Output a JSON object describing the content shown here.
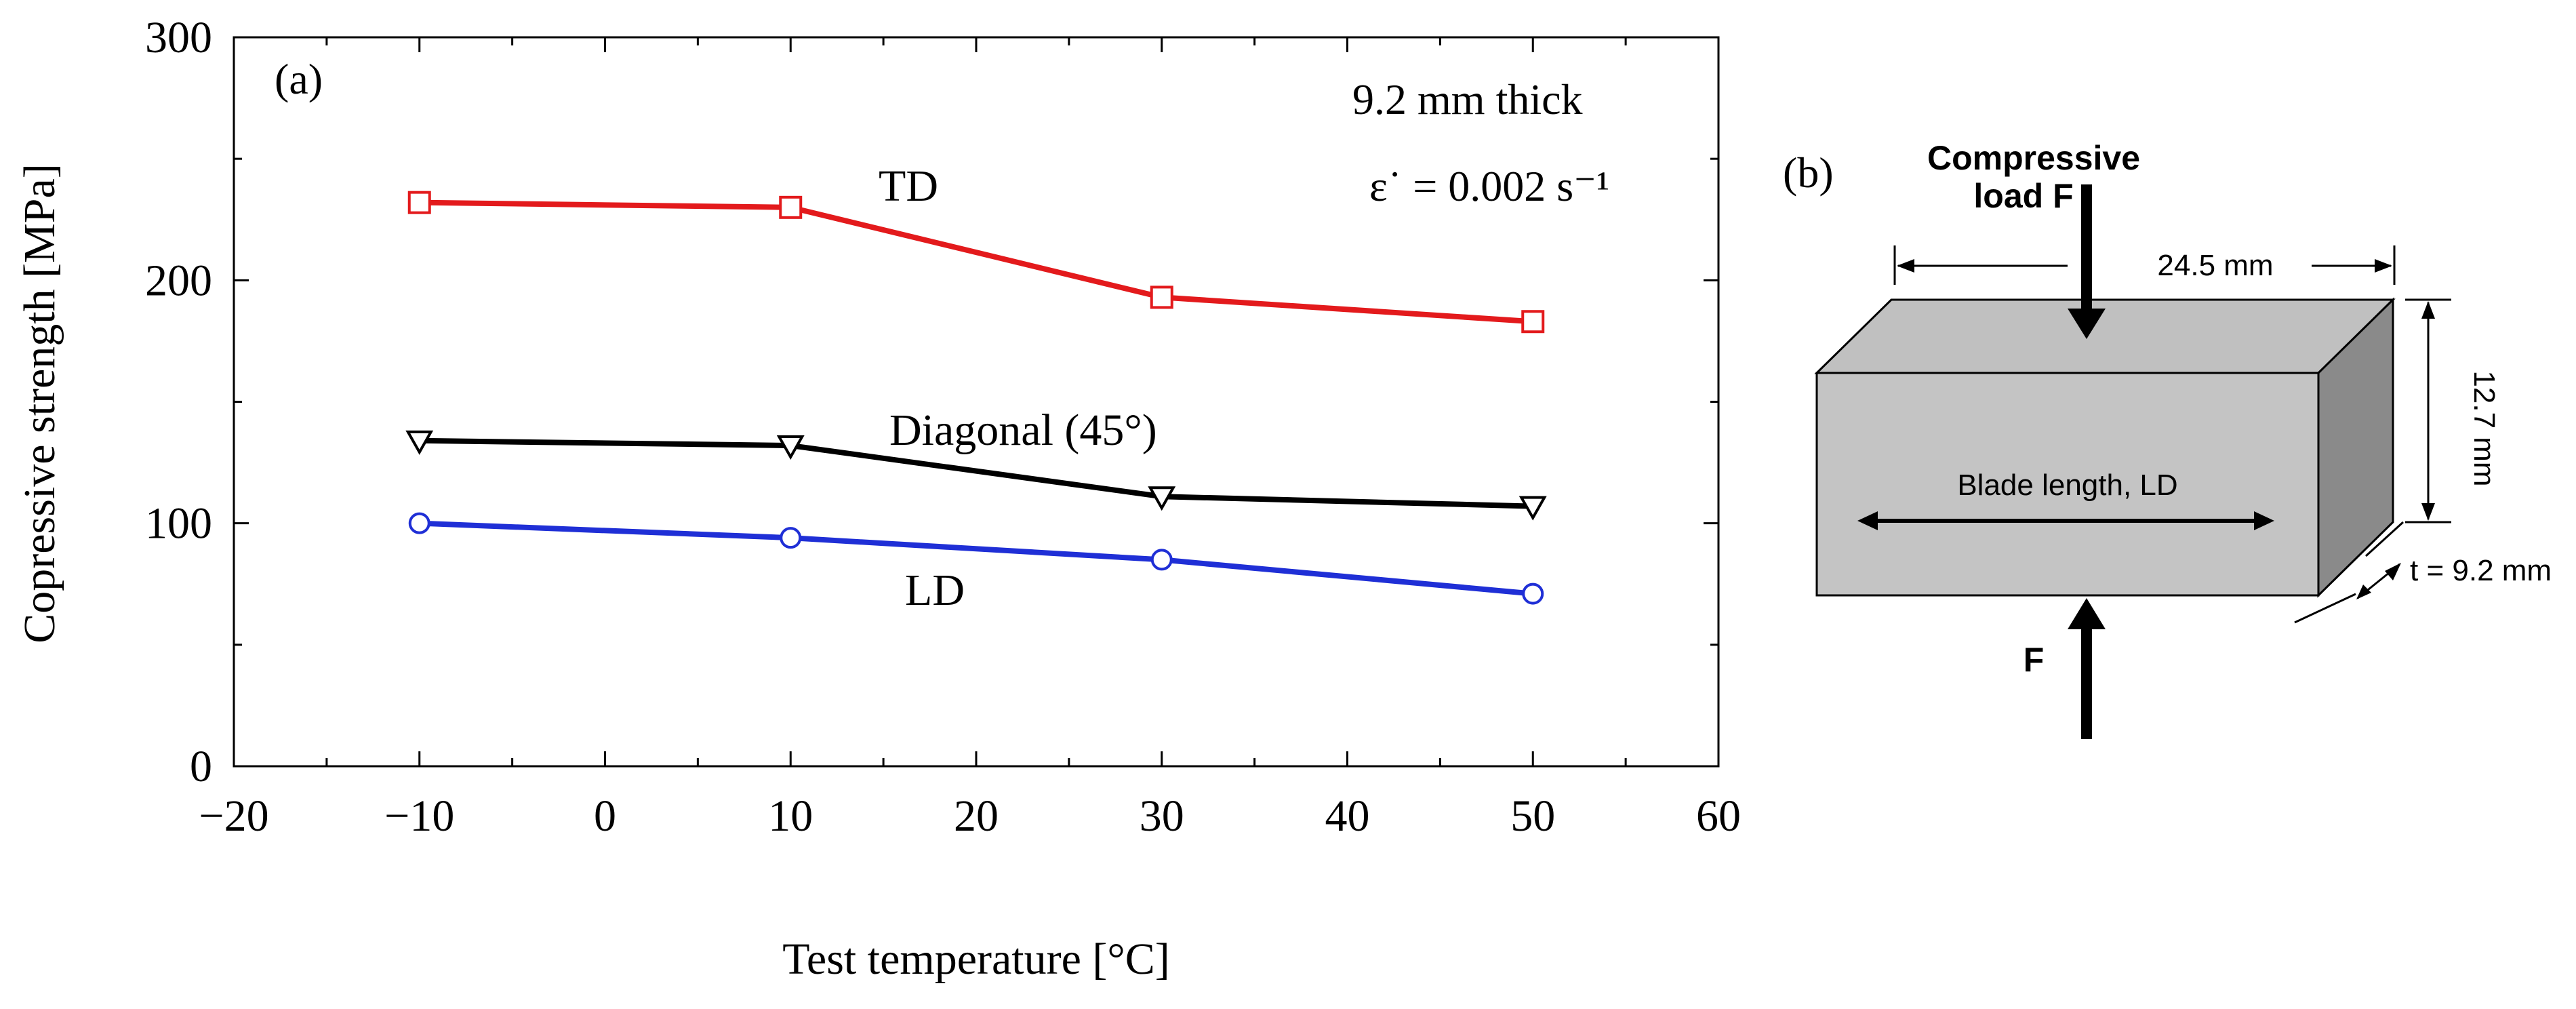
{
  "chart_data": {
    "type": "line",
    "panel_label": "(a)",
    "x": [
      -10,
      10,
      30,
      50
    ],
    "xlim": [
      -20,
      60
    ],
    "ylim": [
      0,
      300
    ],
    "xticks": [
      "−20",
      "−10",
      "0",
      "10",
      "20",
      "30",
      "40",
      "50",
      "60"
    ],
    "xtick_values": [
      -20,
      -10,
      0,
      10,
      20,
      30,
      40,
      50,
      60
    ],
    "yticks": [
      "0",
      "100",
      "200",
      "300"
    ],
    "ytick_values": [
      0,
      100,
      200,
      300
    ],
    "xlabel": "Test temperature [°C]",
    "ylabel": "Copressive strength [MPa]",
    "annotation_thickness": "9.2 mm thick",
    "annotation_rate": "ε˙ =  0.002 s⁻¹",
    "series": [
      {
        "name": "TD",
        "label": "TD",
        "color": "#e31a1c",
        "marker": "square",
        "values": [
          232,
          230,
          193,
          183
        ]
      },
      {
        "name": "Diagonal (45°)",
        "label": "Diagonal (45°)",
        "color": "#000000",
        "marker": "triangle-down",
        "values": [
          134,
          132,
          111,
          107
        ]
      },
      {
        "name": "LD",
        "label": "LD",
        "color": "#1f2fd6",
        "marker": "circle",
        "values": [
          100,
          94,
          85,
          71
        ]
      }
    ]
  },
  "diagram": {
    "panel_label": "(b)",
    "load_label": "Compressive load  F",
    "load_label_line1": "Compressive",
    "load_label_line2": "load  F",
    "width_label": "24.5 mm",
    "height_label": "12.7 mm",
    "thickness_label": "t = 9.2 mm",
    "blade_label": "Blade length, LD",
    "bottom_force_label": "F"
  }
}
